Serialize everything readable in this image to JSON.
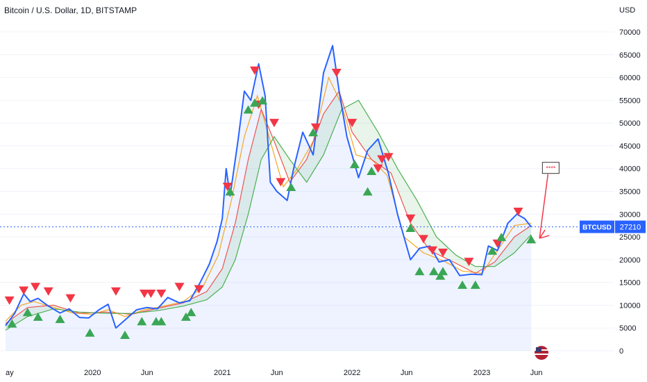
{
  "header": {
    "title": "Bitcoin / U.S. Dollar, 1D, BITSTAMP"
  },
  "colors": {
    "price": "#2962ff",
    "fast_ma": "#f5a623",
    "mid_ma": "#ef5350",
    "slow_ma": "#4caf50",
    "sell_marker": "#f23645",
    "buy_marker": "#26a69a",
    "annotation_arrow": "#f23645"
  },
  "chart_data": {
    "type": "line",
    "title": "Bitcoin / U.S. Dollar, 1D, BITSTAMP",
    "ylabel": "USD",
    "xlabel": "",
    "ylim": [
      0,
      72000
    ],
    "y_ticks": [
      0,
      5000,
      10000,
      15000,
      20000,
      25000,
      30000,
      35000,
      40000,
      45000,
      50000,
      55000,
      60000,
      65000,
      70000
    ],
    "x_ticks": [
      {
        "label": "ay",
        "t": 2019.33
      },
      {
        "label": "2020",
        "t": 2020.0
      },
      {
        "label": "Jun",
        "t": 2020.42
      },
      {
        "label": "2021",
        "t": 2021.0
      },
      {
        "label": "Jun",
        "t": 2021.42
      },
      {
        "label": "2022",
        "t": 2022.0
      },
      {
        "label": "Jun",
        "t": 2022.42
      },
      {
        "label": "2023",
        "t": 2023.0
      },
      {
        "label": "Jun",
        "t": 2023.42
      }
    ],
    "last_price": {
      "symbol": "BTCUSD",
      "value": 27210
    },
    "series": [
      {
        "name": "BTCUSD",
        "points": [
          [
            2019.33,
            5500
          ],
          [
            2019.4,
            8200
          ],
          [
            2019.47,
            12500
          ],
          [
            2019.52,
            10800
          ],
          [
            2019.58,
            11500
          ],
          [
            2019.66,
            9800
          ],
          [
            2019.75,
            8300
          ],
          [
            2019.82,
            9200
          ],
          [
            2019.9,
            7300
          ],
          [
            2019.97,
            7200
          ],
          [
            2020.05,
            9000
          ],
          [
            2020.12,
            10200
          ],
          [
            2020.18,
            5000
          ],
          [
            2020.26,
            7000
          ],
          [
            2020.34,
            9000
          ],
          [
            2020.42,
            9500
          ],
          [
            2020.5,
            9200
          ],
          [
            2020.58,
            11700
          ],
          [
            2020.67,
            10500
          ],
          [
            2020.75,
            11000
          ],
          [
            2020.83,
            15000
          ],
          [
            2020.9,
            19000
          ],
          [
            2020.96,
            24000
          ],
          [
            2021.0,
            29000
          ],
          [
            2021.03,
            40000
          ],
          [
            2021.06,
            34000
          ],
          [
            2021.12,
            46000
          ],
          [
            2021.17,
            57000
          ],
          [
            2021.22,
            55000
          ],
          [
            2021.28,
            63000
          ],
          [
            2021.33,
            56000
          ],
          [
            2021.37,
            37000
          ],
          [
            2021.42,
            35000
          ],
          [
            2021.5,
            33000
          ],
          [
            2021.55,
            40000
          ],
          [
            2021.62,
            48000
          ],
          [
            2021.7,
            43000
          ],
          [
            2021.78,
            61000
          ],
          [
            2021.85,
            67000
          ],
          [
            2021.9,
            57000
          ],
          [
            2021.96,
            47000
          ],
          [
            2022.05,
            38000
          ],
          [
            2022.12,
            44000
          ],
          [
            2022.2,
            46500
          ],
          [
            2022.28,
            39000
          ],
          [
            2022.35,
            30000
          ],
          [
            2022.45,
            20000
          ],
          [
            2022.52,
            22500
          ],
          [
            2022.6,
            23000
          ],
          [
            2022.67,
            19500
          ],
          [
            2022.75,
            20000
          ],
          [
            2022.83,
            16500
          ],
          [
            2022.92,
            16800
          ],
          [
            2023.0,
            16700
          ],
          [
            2023.05,
            23000
          ],
          [
            2023.12,
            22000
          ],
          [
            2023.2,
            28000
          ],
          [
            2023.27,
            30000
          ],
          [
            2023.33,
            29000
          ],
          [
            2023.38,
            27210
          ]
        ]
      },
      {
        "name": "",
        "points": [
          [
            2019.33,
            6500
          ],
          [
            2019.45,
            10000
          ],
          [
            2019.55,
            10800
          ],
          [
            2019.7,
            9500
          ],
          [
            2019.85,
            8300
          ],
          [
            2020.0,
            8000
          ],
          [
            2020.12,
            9000
          ],
          [
            2020.25,
            7500
          ],
          [
            2020.4,
            9000
          ],
          [
            2020.55,
            9800
          ],
          [
            2020.7,
            10800
          ],
          [
            2020.85,
            14000
          ],
          [
            2020.97,
            21000
          ],
          [
            2021.07,
            33000
          ],
          [
            2021.17,
            47000
          ],
          [
            2021.27,
            56000
          ],
          [
            2021.37,
            46000
          ],
          [
            2021.47,
            36000
          ],
          [
            2021.58,
            40000
          ],
          [
            2021.7,
            46000
          ],
          [
            2021.82,
            60000
          ],
          [
            2021.92,
            54000
          ],
          [
            2022.03,
            43000
          ],
          [
            2022.15,
            42000
          ],
          [
            2022.27,
            38500
          ],
          [
            2022.4,
            25000
          ],
          [
            2022.55,
            21500
          ],
          [
            2022.7,
            19800
          ],
          [
            2022.85,
            17500
          ],
          [
            2023.0,
            17000
          ],
          [
            2023.12,
            22000
          ],
          [
            2023.25,
            27500
          ],
          [
            2023.38,
            28000
          ]
        ]
      },
      {
        "name": "",
        "points": [
          [
            2019.33,
            6000
          ],
          [
            2019.5,
            9500
          ],
          [
            2019.7,
            10000
          ],
          [
            2019.9,
            8200
          ],
          [
            2020.1,
            8500
          ],
          [
            2020.3,
            8000
          ],
          [
            2020.5,
            9300
          ],
          [
            2020.7,
            10500
          ],
          [
            2020.88,
            13000
          ],
          [
            2021.0,
            18000
          ],
          [
            2021.1,
            28000
          ],
          [
            2021.2,
            42000
          ],
          [
            2021.3,
            53000
          ],
          [
            2021.4,
            46000
          ],
          [
            2021.52,
            37000
          ],
          [
            2021.65,
            42000
          ],
          [
            2021.78,
            52000
          ],
          [
            2021.9,
            57000
          ],
          [
            2022.0,
            48000
          ],
          [
            2022.15,
            42000
          ],
          [
            2022.3,
            39000
          ],
          [
            2022.45,
            28000
          ],
          [
            2022.6,
            22000
          ],
          [
            2022.78,
            19500
          ],
          [
            2022.95,
            17000
          ],
          [
            2023.1,
            19500
          ],
          [
            2023.25,
            25000
          ],
          [
            2023.38,
            27500
          ]
        ]
      },
      {
        "name": "",
        "points": [
          [
            2019.33,
            4500
          ],
          [
            2019.5,
            7500
          ],
          [
            2019.7,
            9200
          ],
          [
            2019.9,
            8500
          ],
          [
            2020.1,
            8200
          ],
          [
            2020.3,
            8200
          ],
          [
            2020.5,
            8800
          ],
          [
            2020.7,
            9800
          ],
          [
            2020.88,
            11200
          ],
          [
            2021.0,
            14000
          ],
          [
            2021.1,
            20000
          ],
          [
            2021.2,
            30000
          ],
          [
            2021.3,
            42000
          ],
          [
            2021.4,
            47000
          ],
          [
            2021.52,
            42000
          ],
          [
            2021.65,
            37000
          ],
          [
            2021.78,
            43000
          ],
          [
            2021.92,
            53000
          ],
          [
            2022.05,
            55000
          ],
          [
            2022.2,
            48000
          ],
          [
            2022.35,
            40000
          ],
          [
            2022.5,
            33000
          ],
          [
            2022.65,
            25000
          ],
          [
            2022.8,
            21000
          ],
          [
            2022.95,
            18500
          ],
          [
            2023.1,
            18500
          ],
          [
            2023.25,
            21500
          ],
          [
            2023.38,
            25500
          ]
        ]
      }
    ],
    "sell_signals": [
      [
        2019.36,
        11000
      ],
      [
        2019.47,
        13200
      ],
      [
        2019.56,
        14000
      ],
      [
        2019.66,
        13000
      ],
      [
        2019.83,
        11500
      ],
      [
        2020.18,
        13000
      ],
      [
        2020.4,
        12500
      ],
      [
        2020.45,
        12500
      ],
      [
        2020.53,
        12500
      ],
      [
        2020.67,
        14000
      ],
      [
        2020.82,
        13500
      ],
      [
        2021.04,
        36000
      ],
      [
        2021.25,
        61500
      ],
      [
        2021.28,
        54000
      ],
      [
        2021.4,
        50000
      ],
      [
        2021.45,
        37000
      ],
      [
        2021.72,
        49000
      ],
      [
        2021.88,
        61000
      ],
      [
        2022.0,
        50000
      ],
      [
        2022.2,
        40000
      ],
      [
        2022.23,
        42000
      ],
      [
        2022.28,
        42500
      ],
      [
        2022.45,
        29000
      ],
      [
        2022.55,
        24500
      ],
      [
        2022.62,
        22000
      ],
      [
        2022.7,
        21500
      ],
      [
        2022.9,
        19500
      ],
      [
        2023.12,
        23500
      ],
      [
        2023.28,
        30500
      ]
    ],
    "buy_signals": [
      [
        2019.38,
        6000
      ],
      [
        2019.5,
        8500
      ],
      [
        2019.58,
        7500
      ],
      [
        2019.75,
        7000
      ],
      [
        2019.98,
        4000
      ],
      [
        2020.25,
        3500
      ],
      [
        2020.38,
        6500
      ],
      [
        2020.49,
        6500
      ],
      [
        2020.53,
        6500
      ],
      [
        2020.72,
        7500
      ],
      [
        2020.76,
        8500
      ],
      [
        2021.06,
        35000
      ],
      [
        2021.2,
        53000
      ],
      [
        2021.25,
        54500
      ],
      [
        2021.31,
        55000
      ],
      [
        2021.53,
        36000
      ],
      [
        2021.7,
        48000
      ],
      [
        2022.02,
        41000
      ],
      [
        2022.12,
        35000
      ],
      [
        2022.15,
        39500
      ],
      [
        2022.45,
        27000
      ],
      [
        2022.52,
        17500
      ],
      [
        2022.63,
        17500
      ],
      [
        2022.68,
        16500
      ],
      [
        2022.7,
        17500
      ],
      [
        2022.85,
        14500
      ],
      [
        2022.95,
        14500
      ],
      [
        2023.08,
        22000
      ],
      [
        2023.15,
        25000
      ],
      [
        2023.38,
        24500
      ]
    ],
    "annotation": {
      "label": "****",
      "arrow_from": [
        2023.52,
        40000
      ],
      "arrow_to": [
        2023.38,
        25000
      ]
    }
  }
}
